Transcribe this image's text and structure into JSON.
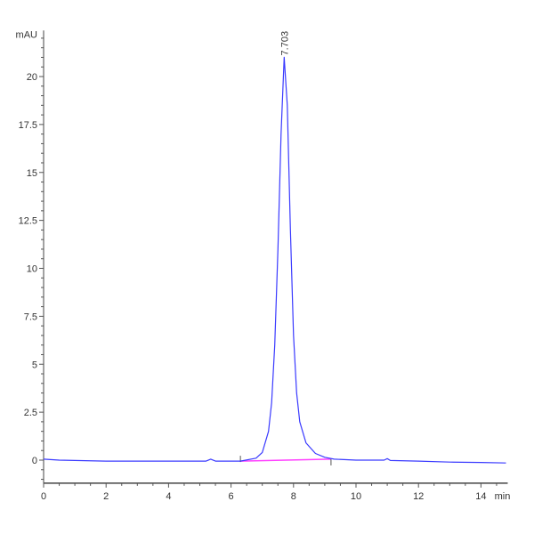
{
  "chart_data": {
    "type": "line",
    "title": "",
    "xlabel": "min",
    "ylabel": "mAU",
    "xlim": [
      0,
      14.8
    ],
    "ylim": [
      -1.2,
      22.4
    ],
    "grid": false,
    "x_ticks": [
      "0",
      "2",
      "4",
      "6",
      "8",
      "10",
      "12",
      "14"
    ],
    "y_ticks": [
      "0",
      "2.5",
      "5",
      "7.5",
      "10",
      "12.5",
      "15",
      "17.5",
      "20"
    ],
    "series": [
      {
        "color": "#3a3aff",
        "x": [
          0,
          0.5,
          2,
          4,
          5.2,
          5.35,
          5.5,
          6.3,
          6.8,
          7.0,
          7.2,
          7.3,
          7.4,
          7.5,
          7.6,
          7.7,
          7.8,
          7.9,
          8.0,
          8.1,
          8.2,
          8.4,
          8.7,
          9.0,
          9.3,
          10,
          10.9,
          11.0,
          11.1,
          12,
          13,
          14,
          14.8
        ],
        "y": [
          0.05,
          0.0,
          -0.05,
          -0.05,
          -0.05,
          0.05,
          -0.05,
          -0.05,
          0.1,
          0.4,
          1.5,
          3,
          6,
          11,
          17,
          21,
          18.5,
          12,
          6.5,
          3.5,
          2,
          0.9,
          0.35,
          0.15,
          0.05,
          0.0,
          0.0,
          0.08,
          -0.02,
          -0.05,
          -0.1,
          -0.12,
          -0.15
        ]
      }
    ],
    "baseline": {
      "color": "#ff40ff",
      "x": [
        6.3,
        9.2
      ],
      "y": [
        -0.05,
        0.05
      ]
    },
    "annotations": [
      {
        "label": "7.703",
        "x": 7.703,
        "y": 21
      }
    ]
  }
}
